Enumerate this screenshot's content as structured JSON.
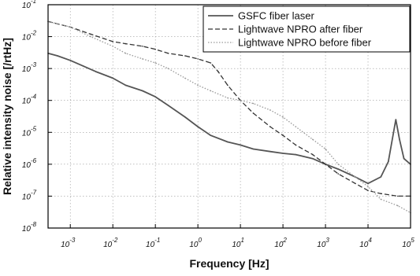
{
  "chart_data": {
    "type": "line",
    "xlabel": "Frequency [Hz]",
    "ylabel": "Relative intensity noise [/rtHz]",
    "x_scale": "log",
    "y_scale": "log",
    "xlim": [
      0.0003,
      100000
    ],
    "ylim": [
      1e-08,
      0.1
    ],
    "x_ticks": [
      {
        "value": 0.001,
        "base": "10",
        "exp": "-3"
      },
      {
        "value": 0.01,
        "base": "10",
        "exp": "-2"
      },
      {
        "value": 0.1,
        "base": "10",
        "exp": "-1"
      },
      {
        "value": 1,
        "base": "10",
        "exp": "0"
      },
      {
        "value": 10,
        "base": "10",
        "exp": "1"
      },
      {
        "value": 100,
        "base": "10",
        "exp": "2"
      },
      {
        "value": 1000,
        "base": "10",
        "exp": "3"
      },
      {
        "value": 10000,
        "base": "10",
        "exp": "4"
      },
      {
        "value": 100000,
        "base": "10",
        "exp": "5"
      }
    ],
    "y_ticks": [
      {
        "value": 0.1,
        "base": "10",
        "exp": "-1"
      },
      {
        "value": 0.01,
        "base": "10",
        "exp": "-2"
      },
      {
        "value": 0.001,
        "base": "10",
        "exp": "-3"
      },
      {
        "value": 0.0001,
        "base": "10",
        "exp": "-4"
      },
      {
        "value": 1e-05,
        "base": "10",
        "exp": "-5"
      },
      {
        "value": 1e-06,
        "base": "10",
        "exp": "-6"
      },
      {
        "value": 1e-07,
        "base": "10",
        "exp": "-7"
      },
      {
        "value": 1e-08,
        "base": "10",
        "exp": "-8"
      }
    ],
    "grid": true,
    "legend_position": "top-right",
    "series": [
      {
        "name": "GSFC fiber laser",
        "color": "#555555",
        "style": "solid",
        "x": [
          0.0003,
          0.0005,
          0.001,
          0.002,
          0.004,
          0.007,
          0.01,
          0.02,
          0.05,
          0.1,
          0.2,
          0.5,
          1,
          2,
          5,
          10,
          20,
          50,
          100,
          200,
          500,
          1000,
          2000,
          5000,
          10000,
          20000,
          30000,
          45000,
          55000,
          70000,
          100000
        ],
        "y": [
          0.003,
          0.0025,
          0.0018,
          0.0012,
          0.0008,
          0.0006,
          0.0005,
          0.0003,
          0.0002,
          0.00013,
          7e-05,
          3e-05,
          1.5e-05,
          8e-06,
          5e-06,
          4e-06,
          3e-06,
          2.5e-06,
          2.2e-06,
          2e-06,
          1.5e-06,
          1e-06,
          7e-07,
          4e-07,
          2.5e-07,
          4e-07,
          1.2e-06,
          2.5e-05,
          6e-06,
          1.5e-06,
          1e-06
        ]
      },
      {
        "name": "Lightwave NPRO after fiber",
        "color": "#333333",
        "style": "dashed",
        "x": [
          0.0003,
          0.0005,
          0.001,
          0.003,
          0.01,
          0.02,
          0.05,
          0.1,
          0.2,
          0.5,
          1,
          2,
          3,
          5,
          10,
          20,
          50,
          100,
          200,
          500,
          1000,
          2000,
          5000,
          10000,
          20000,
          50000,
          100000
        ],
        "y": [
          0.03,
          0.025,
          0.02,
          0.012,
          0.007,
          0.006,
          0.005,
          0.004,
          0.003,
          0.0025,
          0.002,
          0.0015,
          0.0008,
          0.0003,
          0.0001,
          4e-05,
          1.5e-05,
          8e-06,
          4e-06,
          2e-06,
          1e-06,
          5e-07,
          2.5e-07,
          1.5e-07,
          1.2e-07,
          1e-07,
          1e-07
        ]
      },
      {
        "name": "Lightwave NPRO before fiber",
        "color": "#999999",
        "style": "dotted",
        "x": [
          0.0003,
          0.0005,
          0.001,
          0.003,
          0.01,
          0.02,
          0.05,
          0.1,
          0.2,
          0.5,
          1,
          2,
          5,
          10,
          20,
          50,
          100,
          200,
          500,
          1000,
          2000,
          5000,
          10000,
          20000,
          50000,
          100000
        ],
        "y": [
          0.03,
          0.025,
          0.02,
          0.01,
          0.005,
          0.003,
          0.002,
          0.0015,
          0.001,
          0.0005,
          0.0003,
          0.0002,
          0.00012,
          0.0001,
          8e-05,
          5e-05,
          3e-05,
          1.5e-05,
          6e-06,
          3e-06,
          1e-06,
          4e-07,
          2e-07,
          8e-08,
          5e-08,
          3e-08
        ]
      }
    ]
  }
}
